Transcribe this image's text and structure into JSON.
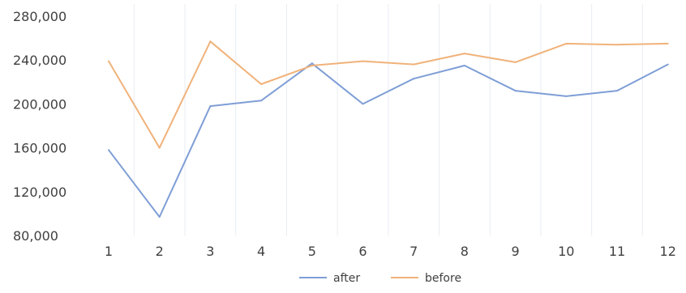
{
  "chart_data": {
    "type": "line",
    "categories": [
      "1",
      "2",
      "3",
      "4",
      "5",
      "6",
      "7",
      "8",
      "9",
      "10",
      "11",
      "12"
    ],
    "series": [
      {
        "name": "after",
        "color": "#7f9ed6",
        "values": [
          158000,
          97000,
          198000,
          203000,
          237000,
          200000,
          223000,
          235000,
          212000,
          207000,
          212000,
          236000
        ]
      },
      {
        "name": "before",
        "color": "#f0b27a",
        "values": [
          239000,
          160000,
          257000,
          218000,
          235000,
          239000,
          236000,
          246000,
          238000,
          255000,
          254000,
          255000
        ]
      }
    ],
    "y_ticks": [
      "280,000",
      "240,000",
      "200,000",
      "160,000",
      "120,000",
      "80,000"
    ],
    "y_tick_values": [
      280000,
      240000,
      200000,
      160000,
      120000,
      80000
    ],
    "ylim": [
      80000,
      280000
    ],
    "grid": "vertical",
    "legend_position": "bottom"
  }
}
